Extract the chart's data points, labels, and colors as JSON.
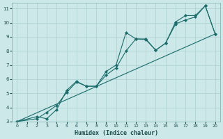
{
  "xlabel": "Humidex (Indice chaleur)",
  "xlim": [
    -0.5,
    20.5
  ],
  "ylim": [
    3,
    11.4
  ],
  "yticks": [
    3,
    4,
    5,
    6,
    7,
    8,
    9,
    10,
    11
  ],
  "xticks": [
    0,
    1,
    2,
    3,
    4,
    5,
    6,
    7,
    8,
    9,
    10,
    11,
    12,
    13,
    14,
    15,
    16,
    17,
    18,
    19,
    20
  ],
  "bg_color": "#cce8e8",
  "grid_color": "#aacfcf",
  "line_color": "#1a6b6b",
  "line1_x": [
    0,
    2,
    3,
    4,
    5,
    6,
    7,
    8,
    9,
    10,
    11,
    12,
    13,
    14,
    15,
    16,
    17,
    18,
    19,
    20
  ],
  "line1_y": [
    3.0,
    3.35,
    3.2,
    3.85,
    5.2,
    5.85,
    5.5,
    5.5,
    6.55,
    7.0,
    9.3,
    8.85,
    8.85,
    8.05,
    8.55,
    10.05,
    10.5,
    10.5,
    11.2,
    9.2
  ],
  "line2_x": [
    0,
    2,
    3,
    4,
    5,
    6,
    7,
    8,
    9,
    10,
    11,
    12,
    13,
    14,
    15,
    16,
    17,
    18,
    19,
    20
  ],
  "line2_y": [
    3.0,
    3.2,
    3.65,
    4.15,
    5.05,
    5.8,
    5.5,
    5.5,
    6.3,
    6.8,
    8.0,
    8.85,
    8.8,
    8.05,
    8.55,
    9.9,
    10.2,
    10.4,
    11.2,
    9.2
  ],
  "line3_x": [
    0,
    20
  ],
  "line3_y": [
    3.0,
    9.2
  ]
}
